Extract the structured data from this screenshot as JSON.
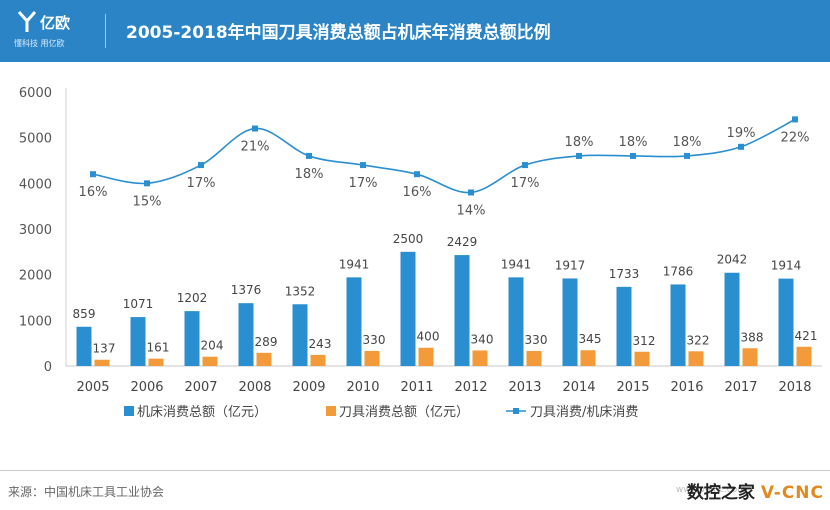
{
  "header": {
    "logo_name": "亿欧",
    "logo_slogan": "懂科技 用亿欧",
    "title": "2005-2018年中国刀具消费总额占机床年消费总额比例"
  },
  "chart_data": {
    "type": "bar",
    "title": "2005-2018年中国刀具消费总额占机床年消费总额比例",
    "categories": [
      "2005",
      "2006",
      "2007",
      "2008",
      "2009",
      "2010",
      "2011",
      "2012",
      "2013",
      "2014",
      "2015",
      "2016",
      "2017",
      "2018"
    ],
    "ylim": [
      0,
      6000
    ],
    "yticks": [
      0,
      1000,
      2000,
      3000,
      4000,
      5000,
      6000
    ],
    "xlabel": "",
    "ylabel": "",
    "legend_position": "bottom",
    "series": [
      {
        "name": "机床消费总额（亿元）",
        "type": "bar",
        "color": "#2a8fd1",
        "values": [
          859,
          1071,
          1202,
          1376,
          1352,
          1941,
          2500,
          2429,
          1941,
          1917,
          1733,
          1786,
          2042,
          1914
        ],
        "labels": [
          "859",
          "1071",
          "1202",
          "1376",
          "1352",
          "1941",
          "2500",
          "2429",
          "1941",
          "1917",
          "1733",
          "1786",
          "2042",
          "1914"
        ]
      },
      {
        "name": "刀具消费总额（亿元）",
        "type": "bar",
        "color": "#f39a3a",
        "values": [
          137,
          161,
          204,
          289,
          243,
          330,
          400,
          340,
          330,
          345,
          312,
          322,
          388,
          421
        ],
        "labels": [
          "137",
          "161",
          "204",
          "289",
          "243",
          "330",
          "400",
          "340",
          "330",
          "345",
          "312",
          "322",
          "388",
          "421"
        ]
      },
      {
        "name": "刀具消费/机床消费",
        "type": "line",
        "color": "#2a8fd1",
        "values": [
          4200,
          4000,
          4400,
          5200,
          4600,
          4400,
          4200,
          3800,
          4400,
          4600,
          4600,
          4600,
          4800,
          5400
        ],
        "labels": [
          "16%",
          "15%",
          "17%",
          "21%",
          "18%",
          "17%",
          "16%",
          "14%",
          "17%",
          "18%",
          "18%",
          "18%",
          "19%",
          "22%"
        ],
        "label_side": [
          "below",
          "below",
          "below",
          "below",
          "below",
          "below",
          "below",
          "below",
          "below",
          "above",
          "above",
          "above",
          "above",
          "below"
        ]
      }
    ]
  },
  "footer": {
    "source": "来源：中国机床工具工业协会",
    "watermark_a": "数控之家",
    "watermark_b": "V-CNC",
    "watermark_url": "www.v-cnc.com"
  }
}
